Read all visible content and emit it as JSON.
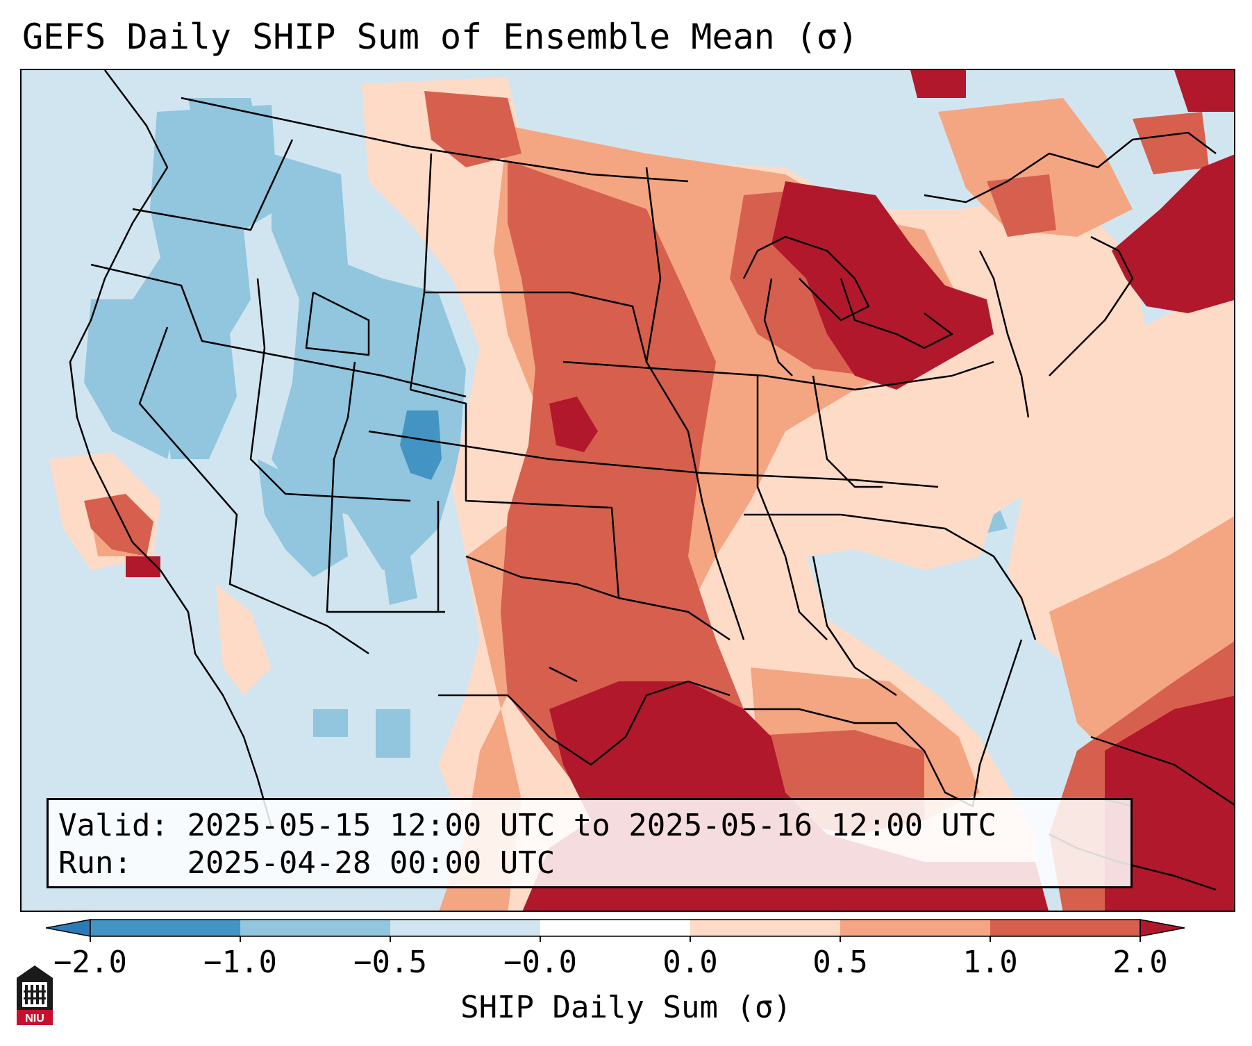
{
  "title": "GEFS Daily SHIP Sum of Ensemble Mean (σ)",
  "info": {
    "valid_label": "Valid:",
    "valid_value": "2025-05-15 12:00 UTC to 2025-05-16 12:00 UTC",
    "run_label": "Run:",
    "run_value": "2025-04-28 00:00 UTC"
  },
  "colorbar": {
    "label": "SHIP Daily Sum (σ)",
    "ticks": [
      "−2.0",
      "−1.0",
      "−0.5",
      "−0.0",
      "0.0",
      "0.5",
      "1.0",
      "2.0"
    ],
    "colors": [
      "#2c7bb6",
      "#4393c3",
      "#92c5de",
      "#d1e5f0",
      "#fddbc7",
      "#f4a582",
      "#d6604d",
      "#b2182b"
    ],
    "extend": "both"
  },
  "logo": {
    "text": "NIU",
    "color": "#c8102e"
  }
}
